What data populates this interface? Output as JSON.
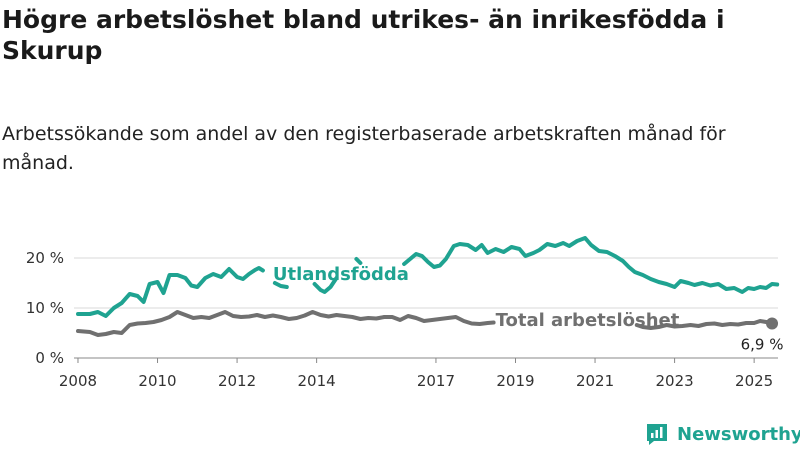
{
  "title": "Högre arbetslöshet bland utrikes- än inrikesfödda i Skurup",
  "subtitle": "Arbetssökande som andel av den registerbaserade arbetskraften månad för månad.",
  "brand": "Newsworthy",
  "colors": {
    "foreign": "#1fa391",
    "total": "#707070",
    "grid": "#d9d9d9",
    "text": "#333333"
  },
  "chart_data": {
    "type": "line",
    "x_ticks": [
      "2008",
      "2010",
      "2012",
      "2014",
      "2017",
      "2019",
      "2021",
      "2023",
      "2025"
    ],
    "y_ticks": [
      "0 %",
      "10 %",
      "20 %"
    ],
    "ylim": [
      0,
      24
    ],
    "xlim": [
      2007.9,
      2025.6
    ],
    "end_label": "6,9 %",
    "series": [
      {
        "name": "Utlandsfödda",
        "color": "#1fa391",
        "segments": [
          [
            [
              2008.0,
              8.8
            ],
            [
              2008.3,
              8.8
            ],
            [
              2008.5,
              9.2
            ],
            [
              2008.7,
              8.4
            ],
            [
              2008.9,
              10.0
            ],
            [
              2009.1,
              11.0
            ],
            [
              2009.3,
              12.8
            ],
            [
              2009.5,
              12.4
            ],
            [
              2009.65,
              11.2
            ],
            [
              2009.8,
              14.8
            ],
            [
              2010.0,
              15.2
            ],
            [
              2010.15,
              13.0
            ],
            [
              2010.3,
              16.6
            ],
            [
              2010.5,
              16.6
            ],
            [
              2010.7,
              16.0
            ],
            [
              2010.85,
              14.5
            ],
            [
              2011.0,
              14.2
            ],
            [
              2011.2,
              16.0
            ],
            [
              2011.4,
              16.8
            ],
            [
              2011.6,
              16.2
            ],
            [
              2011.8,
              17.8
            ],
            [
              2012.0,
              16.2
            ],
            [
              2012.15,
              15.8
            ],
            [
              2012.3,
              16.8
            ],
            [
              2012.45,
              17.6
            ],
            [
              2012.55,
              18.0
            ],
            [
              2012.65,
              17.5
            ]
          ],
          [
            [
              2012.95,
              15.0
            ],
            [
              2013.1,
              14.4
            ],
            [
              2013.25,
              14.2
            ]
          ],
          [
            [
              2013.95,
              14.8
            ],
            [
              2014.1,
              13.6
            ],
            [
              2014.2,
              13.2
            ],
            [
              2014.35,
              14.2
            ],
            [
              2014.5,
              16.0
            ]
          ],
          [
            [
              2015.0,
              19.8
            ],
            [
              2015.1,
              19.0
            ]
          ],
          [
            [
              2016.2,
              18.8
            ],
            [
              2016.35,
              19.8
            ],
            [
              2016.5,
              20.8
            ],
            [
              2016.65,
              20.4
            ],
            [
              2016.8,
              19.2
            ],
            [
              2016.95,
              18.2
            ],
            [
              2017.1,
              18.5
            ],
            [
              2017.25,
              19.8
            ],
            [
              2017.45,
              22.4
            ],
            [
              2017.6,
              22.8
            ],
            [
              2017.8,
              22.6
            ],
            [
              2018.0,
              21.6
            ],
            [
              2018.15,
              22.6
            ],
            [
              2018.3,
              21.0
            ],
            [
              2018.5,
              21.8
            ],
            [
              2018.7,
              21.2
            ],
            [
              2018.9,
              22.2
            ],
            [
              2019.1,
              21.8
            ],
            [
              2019.25,
              20.4
            ],
            [
              2019.45,
              21.0
            ],
            [
              2019.6,
              21.6
            ],
            [
              2019.8,
              22.8
            ],
            [
              2020.0,
              22.4
            ],
            [
              2020.2,
              23.0
            ],
            [
              2020.35,
              22.4
            ],
            [
              2020.55,
              23.4
            ],
            [
              2020.75,
              24.0
            ],
            [
              2020.9,
              22.6
            ],
            [
              2021.1,
              21.4
            ],
            [
              2021.3,
              21.2
            ],
            [
              2021.5,
              20.4
            ],
            [
              2021.7,
              19.4
            ],
            [
              2021.85,
              18.2
            ],
            [
              2022.0,
              17.2
            ],
            [
              2022.2,
              16.6
            ],
            [
              2022.4,
              15.8
            ],
            [
              2022.6,
              15.2
            ],
            [
              2022.8,
              14.8
            ],
            [
              2023.0,
              14.2
            ],
            [
              2023.15,
              15.4
            ],
            [
              2023.35,
              15.0
            ],
            [
              2023.5,
              14.6
            ],
            [
              2023.7,
              15.0
            ],
            [
              2023.9,
              14.5
            ],
            [
              2024.1,
              14.8
            ],
            [
              2024.3,
              13.8
            ],
            [
              2024.5,
              14.0
            ],
            [
              2024.7,
              13.2
            ],
            [
              2024.85,
              14.0
            ],
            [
              2025.0,
              13.8
            ],
            [
              2025.15,
              14.2
            ],
            [
              2025.3,
              14.0
            ],
            [
              2025.45,
              14.8
            ],
            [
              2025.58,
              14.7
            ]
          ]
        ]
      },
      {
        "name": "Total arbetslöshet",
        "color": "#707070",
        "segments": [
          [
            [
              2008.0,
              5.4
            ],
            [
              2008.3,
              5.2
            ],
            [
              2008.5,
              4.6
            ],
            [
              2008.7,
              4.8
            ],
            [
              2008.9,
              5.2
            ],
            [
              2009.1,
              5.0
            ],
            [
              2009.3,
              6.6
            ],
            [
              2009.5,
              6.9
            ],
            [
              2009.7,
              7.0
            ],
            [
              2009.9,
              7.2
            ],
            [
              2010.1,
              7.6
            ],
            [
              2010.3,
              8.2
            ],
            [
              2010.5,
              9.2
            ],
            [
              2010.7,
              8.6
            ],
            [
              2010.9,
              8.0
            ],
            [
              2011.1,
              8.2
            ],
            [
              2011.3,
              8.0
            ],
            [
              2011.5,
              8.6
            ],
            [
              2011.7,
              9.2
            ],
            [
              2011.9,
              8.4
            ],
            [
              2012.1,
              8.2
            ],
            [
              2012.3,
              8.3
            ],
            [
              2012.5,
              8.6
            ],
            [
              2012.7,
              8.2
            ],
            [
              2012.9,
              8.5
            ],
            [
              2013.1,
              8.2
            ],
            [
              2013.3,
              7.8
            ],
            [
              2013.5,
              8.0
            ],
            [
              2013.7,
              8.5
            ],
            [
              2013.9,
              9.2
            ],
            [
              2014.1,
              8.6
            ],
            [
              2014.3,
              8.3
            ],
            [
              2014.5,
              8.6
            ],
            [
              2014.7,
              8.4
            ],
            [
              2014.9,
              8.2
            ],
            [
              2015.1,
              7.8
            ],
            [
              2015.3,
              8.0
            ],
            [
              2015.5,
              7.9
            ],
            [
              2015.7,
              8.2
            ],
            [
              2015.9,
              8.2
            ],
            [
              2016.1,
              7.6
            ],
            [
              2016.3,
              8.4
            ],
            [
              2016.5,
              8.0
            ],
            [
              2016.7,
              7.4
            ],
            [
              2016.9,
              7.6
            ],
            [
              2017.1,
              7.8
            ],
            [
              2017.3,
              8.0
            ],
            [
              2017.5,
              8.2
            ],
            [
              2017.7,
              7.4
            ],
            [
              2017.9,
              6.9
            ],
            [
              2018.1,
              6.8
            ],
            [
              2018.3,
              7.0
            ],
            [
              2018.45,
              7.1
            ]
          ],
          [
            [
              2022.05,
              6.6
            ],
            [
              2022.2,
              6.2
            ],
            [
              2022.4,
              6.0
            ],
            [
              2022.6,
              6.2
            ],
            [
              2022.8,
              6.6
            ],
            [
              2023.0,
              6.3
            ],
            [
              2023.2,
              6.4
            ],
            [
              2023.4,
              6.6
            ],
            [
              2023.6,
              6.4
            ],
            [
              2023.8,
              6.8
            ],
            [
              2024.0,
              6.9
            ],
            [
              2024.2,
              6.6
            ],
            [
              2024.4,
              6.8
            ],
            [
              2024.6,
              6.7
            ],
            [
              2024.8,
              7.0
            ],
            [
              2025.0,
              7.0
            ],
            [
              2025.15,
              7.4
            ],
            [
              2025.3,
              7.2
            ],
            [
              2025.45,
              6.9
            ]
          ]
        ]
      }
    ]
  }
}
